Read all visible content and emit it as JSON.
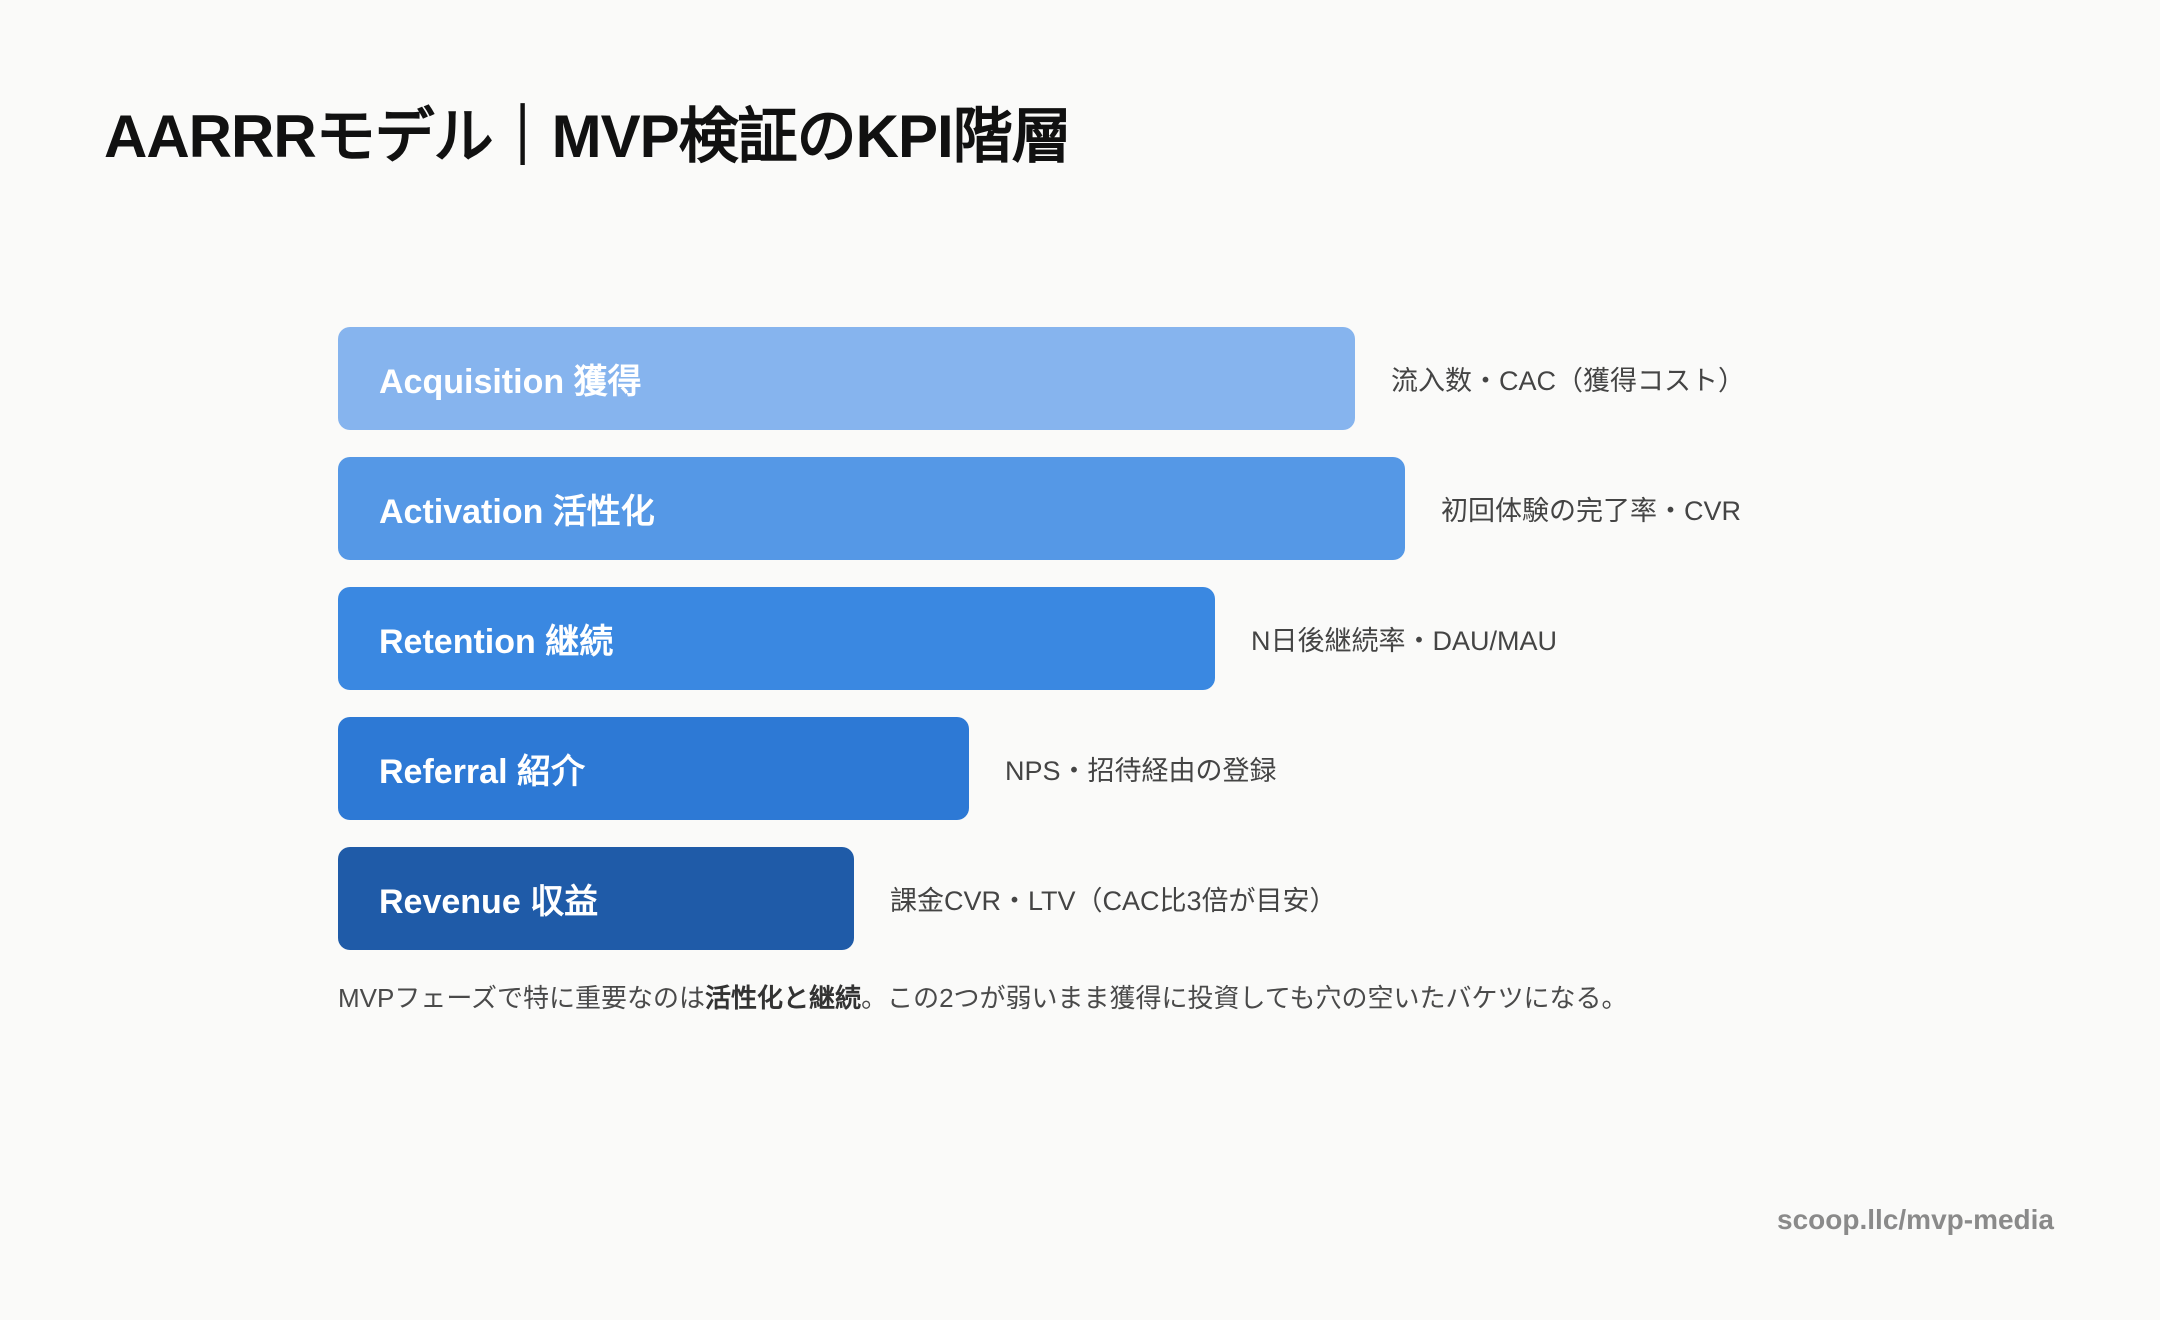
{
  "title": "AARRRモデル｜MVP検証のKPI階層",
  "stages": [
    {
      "label": "Acquisition 獲得",
      "metric": "流入数・CAC（獲得コスト）",
      "relative_width": 0.471,
      "color": "#86b4ee"
    },
    {
      "label": "Activation 活性化",
      "metric": "初回体験の完了率・CVR",
      "relative_width": 0.494,
      "color": "#5598e6"
    },
    {
      "label": "Retention 継続",
      "metric": "N日後継続率・DAU/MAU",
      "relative_width": 0.406,
      "color": "#3a88e1"
    },
    {
      "label": "Referral 紹介",
      "metric": "NPS・招待経由の登録",
      "relative_width": 0.292,
      "color": "#2d79d5"
    },
    {
      "label": "Revenue 収益",
      "metric": "課金CVR・LTV（CAC比3倍が目安）",
      "relative_width": 0.239,
      "color": "#1f5ba8"
    }
  ],
  "note": {
    "prefix": "MVPフェーズで特に重要なのは",
    "emphasis": "活性化と継続",
    "suffix": "。この2つが弱いまま獲得に投資しても穴の空いたバケツになる。"
  },
  "credit": "scoop.llc/mvp-media"
}
